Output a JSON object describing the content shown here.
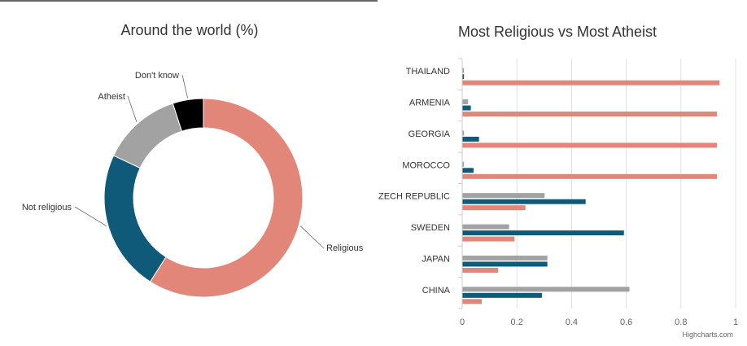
{
  "chart_data": [
    {
      "type": "pie",
      "title": "Around the world (%)",
      "slices": [
        {
          "name": "Religious",
          "value": 59,
          "color": "#e2867a"
        },
        {
          "name": "Not religious",
          "value": 23,
          "color": "#0f5a78"
        },
        {
          "name": "Atheist",
          "value": 13,
          "color": "#a2a2a2"
        },
        {
          "name": "Don't know",
          "value": 5,
          "color": "#000000"
        }
      ]
    },
    {
      "type": "bar",
      "title": "Most Religious vs Most Atheist",
      "categories": [
        "THAILAND",
        "ARMENIA",
        "GEORGIA",
        "MOROCCO",
        "CZECH REPUBLIC",
        "SWEDEN",
        "JAPAN",
        "CHINA"
      ],
      "series": [
        {
          "color": "#a2a2a2",
          "values": [
            0.005,
            0.02,
            0.005,
            0.005,
            0.3,
            0.17,
            0.31,
            0.61
          ]
        },
        {
          "color": "#0f5a78",
          "values": [
            0.005,
            0.03,
            0.06,
            0.04,
            0.45,
            0.59,
            0.31,
            0.29
          ]
        },
        {
          "color": "#e2867a",
          "values": [
            0.94,
            0.93,
            0.93,
            0.93,
            0.23,
            0.19,
            0.13,
            0.07
          ]
        }
      ],
      "xlim": [
        0,
        1
      ],
      "ticks": [
        "0",
        "0.2",
        "0.4",
        "0.6",
        "0.8",
        "1"
      ],
      "grid": true,
      "orientation": "horizontal"
    }
  ],
  "credits": "Highcharts.com"
}
